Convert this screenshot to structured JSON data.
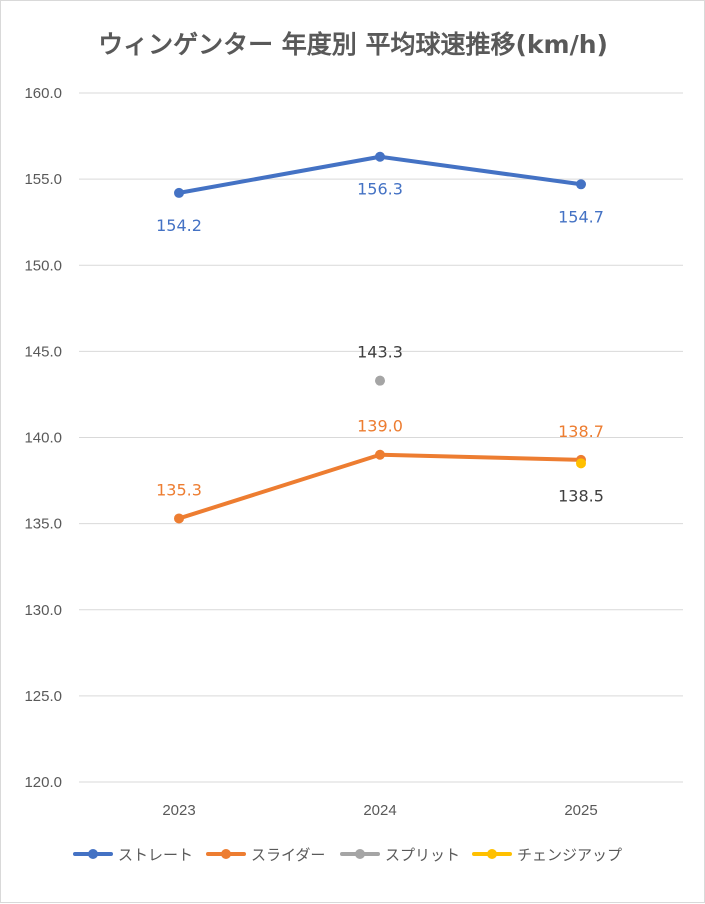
{
  "chart_data": {
    "type": "line",
    "title": "ウィンゲンター 年度別 平均球速推移(km/h)",
    "categories": [
      "2023",
      "2024",
      "2025"
    ],
    "ylim": [
      120,
      160
    ],
    "yticks": [
      120,
      125,
      130,
      135,
      140,
      145,
      150,
      155,
      160
    ],
    "ytick_labels": [
      "120.0",
      "125.0",
      "130.0",
      "135.0",
      "140.0",
      "145.0",
      "150.0",
      "155.0",
      "160.0"
    ],
    "grid": true,
    "legend_position": "bottom",
    "series": [
      {
        "name": "ストレート",
        "color": "#4472C4",
        "values": [
          154.2,
          156.3,
          154.7
        ],
        "labels": [
          "154.2",
          "156.3",
          "154.7"
        ],
        "label_pos": [
          "below",
          "below",
          "below"
        ],
        "label_color": "#4472C4"
      },
      {
        "name": "スライダー",
        "color": "#ED7D31",
        "values": [
          135.3,
          139.0,
          138.7
        ],
        "labels": [
          "135.3",
          "139.0",
          "138.7"
        ],
        "label_pos": [
          "above",
          "above",
          "above"
        ],
        "label_color": "#ED7D31"
      },
      {
        "name": "スプリット",
        "color": "#A5A5A5",
        "values": [
          null,
          143.3,
          null
        ],
        "labels": [
          "",
          "143.3",
          ""
        ],
        "label_pos": [
          "above",
          "above",
          "above"
        ],
        "label_color": "#404040"
      },
      {
        "name": "チェンジアップ",
        "color": "#FFC000",
        "values": [
          null,
          null,
          138.5
        ],
        "labels": [
          "",
          "",
          "138.5"
        ],
        "label_pos": [
          "below",
          "below",
          "below"
        ],
        "label_color": "#404040"
      }
    ]
  }
}
